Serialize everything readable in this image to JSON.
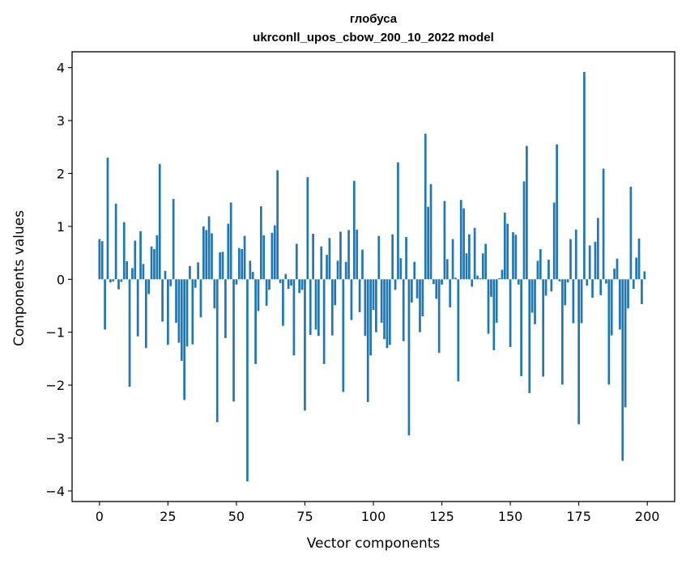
{
  "chart_data": {
    "type": "bar",
    "title": "глобуса",
    "subtitle": "ukrconll_upos_cbow_200_10_2022 model",
    "xlabel": "Vector components",
    "ylabel": "Components values",
    "xlim": [
      -10,
      210
    ],
    "ylim": [
      -4.2,
      4.3
    ],
    "xticks": [
      0,
      25,
      50,
      75,
      100,
      125,
      150,
      175,
      200
    ],
    "xtick_labels": [
      "0",
      "25",
      "50",
      "75",
      "100",
      "125",
      "150",
      "175",
      "200"
    ],
    "yticks": [
      -4,
      -3,
      -2,
      -1,
      0,
      1,
      2,
      3,
      4
    ],
    "ytick_labels": [
      "−4",
      "−3",
      "−2",
      "−1",
      "0",
      "1",
      "2",
      "3",
      "4"
    ],
    "grid": false,
    "bar_color": "#1f77b4",
    "x": [
      0,
      1,
      2,
      3,
      4,
      5,
      6,
      7,
      8,
      9,
      10,
      11,
      12,
      13,
      14,
      15,
      16,
      17,
      18,
      19,
      20,
      21,
      22,
      23,
      24,
      25,
      26,
      27,
      28,
      29,
      30,
      31,
      32,
      33,
      34,
      35,
      36,
      37,
      38,
      39,
      40,
      41,
      42,
      43,
      44,
      45,
      46,
      47,
      48,
      49,
      50,
      51,
      52,
      53,
      54,
      55,
      56,
      57,
      58,
      59,
      60,
      61,
      62,
      63,
      64,
      65,
      66,
      67,
      68,
      69,
      70,
      71,
      72,
      73,
      74,
      75,
      76,
      77,
      78,
      79,
      80,
      81,
      82,
      83,
      84,
      85,
      86,
      87,
      88,
      89,
      90,
      91,
      92,
      93,
      94,
      95,
      96,
      97,
      98,
      99,
      100,
      101,
      102,
      103,
      104,
      105,
      106,
      107,
      108,
      109,
      110,
      111,
      112,
      113,
      114,
      115,
      116,
      117,
      118,
      119,
      120,
      121,
      122,
      123,
      124,
      125,
      126,
      127,
      128,
      129,
      130,
      131,
      132,
      133,
      134,
      135,
      136,
      137,
      138,
      139,
      140,
      141,
      142,
      143,
      144,
      145,
      146,
      147,
      148,
      149,
      150,
      151,
      152,
      153,
      154,
      155,
      156,
      157,
      158,
      159,
      160,
      161,
      162,
      163,
      164,
      165,
      166,
      167,
      168,
      169,
      170,
      171,
      172,
      173,
      174,
      175,
      176,
      177,
      178,
      179,
      180,
      181,
      182,
      183,
      184,
      185,
      186,
      187,
      188,
      189,
      190,
      191,
      192,
      193,
      194,
      195,
      196,
      197,
      198,
      199
    ],
    "values": [
      0.76,
      0.72,
      -0.95,
      2.3,
      -0.06,
      -0.04,
      1.43,
      -0.19,
      -0.05,
      1.08,
      0.34,
      -2.03,
      0.21,
      0.73,
      -1.08,
      0.91,
      0.29,
      -1.3,
      -0.28,
      0.62,
      0.57,
      0.83,
      2.18,
      -0.8,
      0.16,
      -1.24,
      -0.13,
      1.52,
      -0.82,
      -1.2,
      -1.54,
      -2.28,
      -1.27,
      0.25,
      -1.23,
      -0.16,
      0.32,
      -0.72,
      1.0,
      0.93,
      1.19,
      0.87,
      -0.55,
      -2.7,
      0.51,
      0.52,
      -1.11,
      1.05,
      1.45,
      -2.31,
      -0.1,
      0.59,
      0.57,
      0.82,
      -3.82,
      0.35,
      0.14,
      -1.6,
      -0.6,
      1.38,
      0.83,
      -0.5,
      -0.2,
      0.88,
      1.02,
      2.06,
      -0.07,
      -0.88,
      0.1,
      -0.18,
      -0.12,
      -1.44,
      0.67,
      -0.26,
      -0.2,
      -2.48,
      1.93,
      -1.05,
      0.86,
      -0.95,
      -1.07,
      0.62,
      -1.6,
      0.46,
      0.78,
      -1.06,
      -0.49,
      0.35,
      0.9,
      -2.13,
      0.33,
      0.93,
      -0.77,
      1.86,
      0.94,
      -0.62,
      0.56,
      -1.07,
      -2.32,
      -1.44,
      -0.58,
      -1.0,
      0.82,
      -0.82,
      -1.13,
      -1.3,
      -1.24,
      0.85,
      -0.2,
      2.21,
      0.4,
      -1.17,
      0.8,
      -2.95,
      -0.44,
      0.33,
      -0.36,
      -1.0,
      -0.7,
      2.75,
      1.37,
      1.8,
      -0.09,
      -0.37,
      -1.39,
      -0.1,
      1.48,
      0.38,
      -0.53,
      0.76,
      0.03,
      -1.93,
      1.5,
      1.34,
      0.49,
      0.85,
      -0.14,
      0.97,
      0.07,
      0.02,
      0.49,
      0.67,
      -1.03,
      -0.33,
      -1.34,
      -0.82,
      0.02,
      0.18,
      1.26,
      1.05,
      -1.28,
      0.89,
      0.84,
      -0.1,
      -1.83,
      1.85,
      2.52,
      -2.15,
      -0.63,
      -0.85,
      0.35,
      0.57,
      -1.84,
      -0.31,
      0.37,
      -0.23,
      1.45,
      2.55,
      -0.04,
      -1.99,
      -0.49,
      -0.06,
      0.76,
      -0.83,
      0.94,
      -2.74,
      -0.83,
      3.92,
      -0.12,
      0.64,
      -0.35,
      0.71,
      1.16,
      -0.3,
      2.09,
      -0.08,
      -1.99,
      -1.06,
      0.2,
      0.39,
      -0.95,
      -3.43,
      -2.42,
      -0.55,
      1.75,
      -0.18,
      0.41,
      0.77,
      -0.47,
      0.15
    ]
  }
}
